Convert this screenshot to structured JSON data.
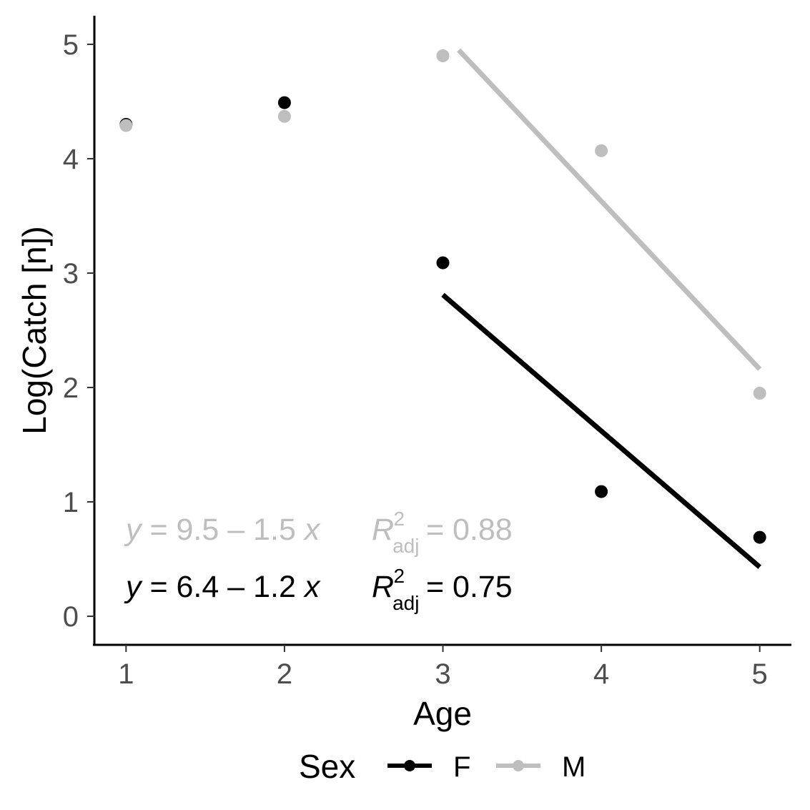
{
  "chart_data": {
    "type": "scatter",
    "xlabel": "Age",
    "ylabel": "Log(Catch [n])",
    "xlim": [
      0.8,
      5.2
    ],
    "ylim": [
      -0.25,
      5.25
    ],
    "x_ticks": [
      "1",
      "2",
      "3",
      "4",
      "5"
    ],
    "y_ticks": [
      "0",
      "1",
      "2",
      "3",
      "4",
      "5"
    ],
    "grid": false,
    "legend": {
      "title": "Sex",
      "position": "bottom"
    },
    "series": [
      {
        "name": "F",
        "color": "#000000",
        "points": [
          {
            "x": 1,
            "y": 4.3
          },
          {
            "x": 2,
            "y": 4.49
          },
          {
            "x": 3,
            "y": 3.09
          },
          {
            "x": 4,
            "y": 1.09
          },
          {
            "x": 5,
            "y": 0.69
          }
        ],
        "fit": {
          "x_start": 3,
          "y_start": 2.81,
          "x_end": 5,
          "y_end": 0.43
        },
        "equation": {
          "y": "y",
          "intercept_part": " = 6.4 – 1.2 ",
          "x": "x",
          "r": "R",
          "sub": "adj",
          "sup": "2",
          "r_value": " = 0.75"
        }
      },
      {
        "name": "M",
        "color": "#bebebe",
        "points": [
          {
            "x": 1,
            "y": 4.29
          },
          {
            "x": 2,
            "y": 4.37
          },
          {
            "x": 3,
            "y": 4.9
          },
          {
            "x": 4,
            "y": 4.07
          },
          {
            "x": 5,
            "y": 1.95
          }
        ],
        "fit": {
          "x_start": 3.1,
          "y_start": 4.95,
          "x_end": 5,
          "y_end": 2.16
        },
        "equation": {
          "y": "y",
          "intercept_part": " = 9.5 – 1.5 ",
          "x": "x",
          "r": "R",
          "sub": "adj",
          "sup": "2",
          "r_value": " = 0.88"
        }
      }
    ]
  }
}
